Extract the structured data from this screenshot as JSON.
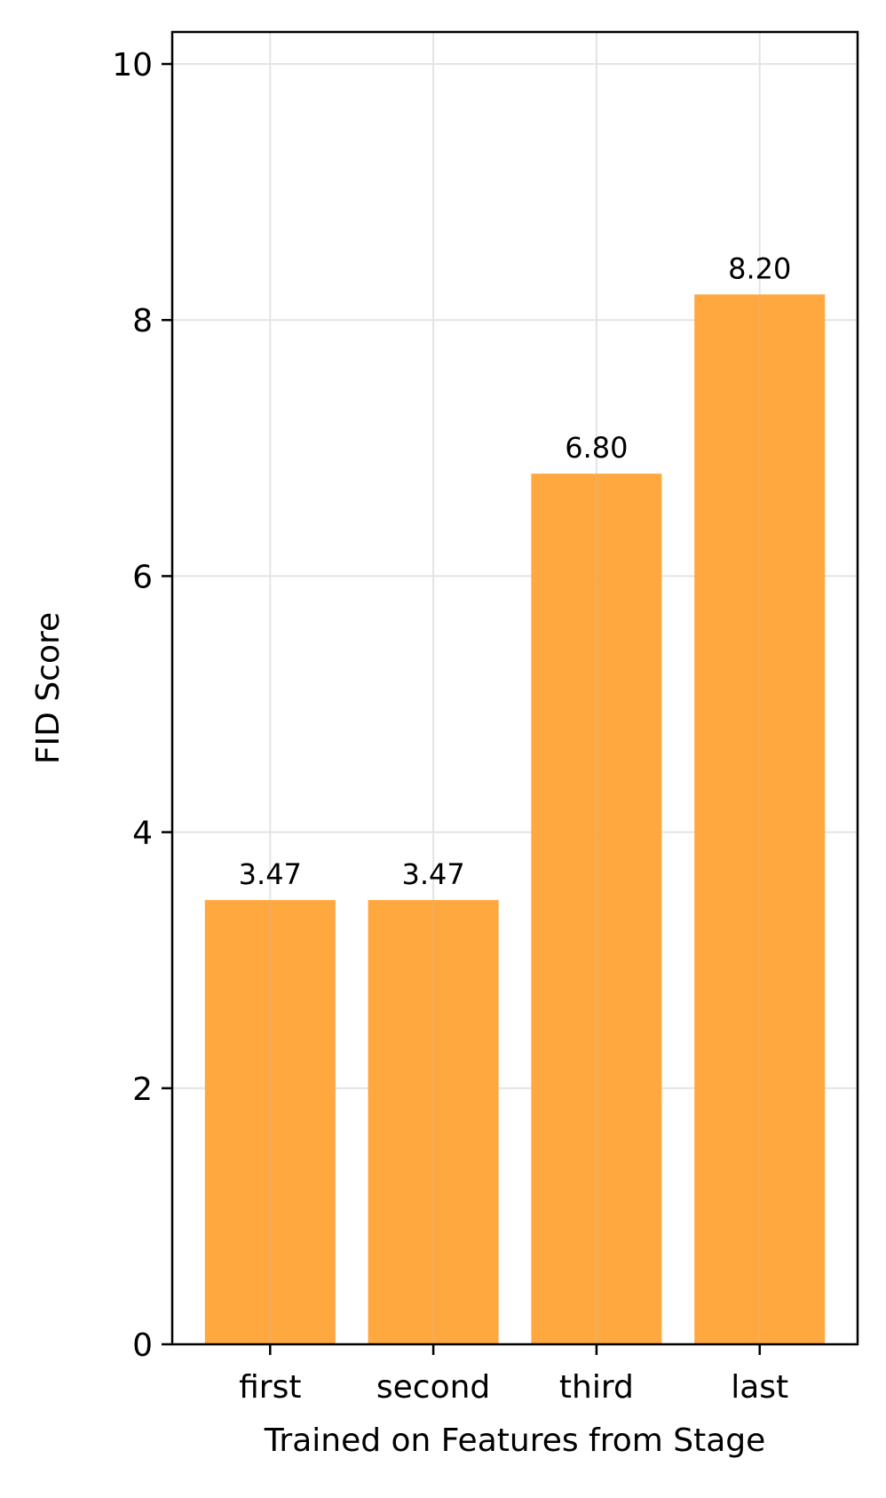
{
  "chart_data": {
    "type": "bar",
    "categories": [
      "first",
      "second",
      "third",
      "last"
    ],
    "values": [
      3.47,
      3.47,
      6.8,
      8.2
    ],
    "value_labels": [
      "3.47",
      "3.47",
      "6.80",
      "8.20"
    ],
    "xlabel": "Trained on Features from Stage",
    "ylabel": "FID Score",
    "ylim": [
      0,
      10.25
    ],
    "yticks": [
      0,
      2,
      4,
      6,
      8,
      10
    ],
    "ytick_labels": [
      "0",
      "2",
      "4",
      "6",
      "8",
      "10"
    ],
    "grid": true,
    "bar_color": "#ffa336",
    "grid_color": "#e4e4e4",
    "axis_color": "#000000"
  }
}
